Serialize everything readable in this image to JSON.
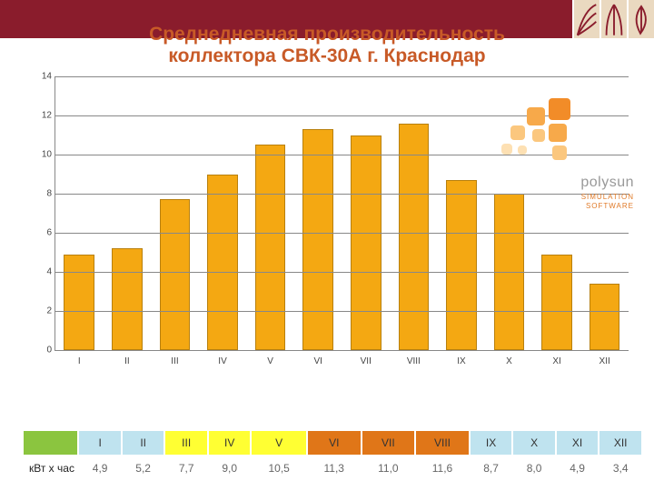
{
  "title_line1": "Среднедневная производительность",
  "title_line2": "коллектора СВК-30А г. Краснодар",
  "chart": {
    "type": "bar",
    "categories": [
      "I",
      "II",
      "III",
      "IV",
      "V",
      "VI",
      "VII",
      "VIII",
      "IX",
      "X",
      "XI",
      "XII"
    ],
    "values": [
      4.9,
      5.2,
      7.7,
      9.0,
      10.5,
      11.3,
      11.0,
      11.6,
      8.7,
      8.0,
      4.9,
      3.4
    ],
    "bar_color": "#f4a812",
    "bar_border": "#b8800e",
    "ylim": [
      0,
      14
    ],
    "ytick_step": 2,
    "grid_color": "#888888",
    "background_color": "#ffffff",
    "label_fontsize": 10
  },
  "table": {
    "row_label": "кВт х час",
    "header_colors": [
      "#8bc53f",
      "#bfe3ef",
      "#bfe3ef",
      "#ffff33",
      "#ffff33",
      "#ffff33",
      "#e07618",
      "#e07618",
      "#e07618",
      "#bfe3ef",
      "#bfe3ef",
      "#bfe3ef",
      "#bfe3ef"
    ],
    "months": [
      "I",
      "II",
      "III",
      "IV",
      "V",
      "VI",
      "VII",
      "VIII",
      "IX",
      "X",
      "XI",
      "XII"
    ],
    "values_display": [
      "4,9",
      "5,2",
      "7,7",
      "9,0",
      "10,5",
      "11,3",
      "11,0",
      "11,6",
      "8,7",
      "8,0",
      "4,9",
      "3,4"
    ]
  },
  "polysun": {
    "brand": "polysun",
    "sub1": "SIMULATION",
    "sub2": "SOFTWARE",
    "colors": [
      "#f28c28",
      "#f7a94a",
      "#fbc77e",
      "#fde0b3"
    ]
  },
  "accent_band_color": "#8a1c2c"
}
